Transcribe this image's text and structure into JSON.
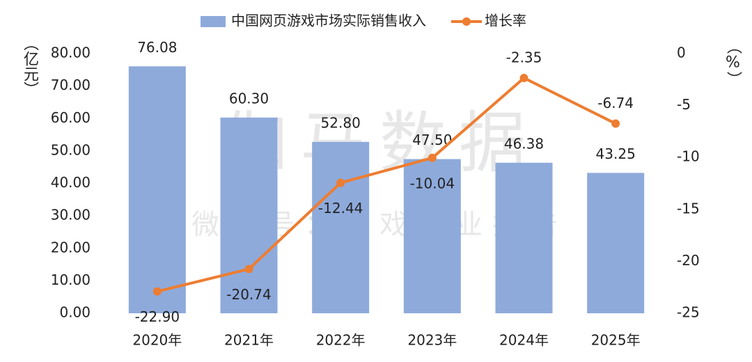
{
  "chart_data": {
    "type": "bar-line",
    "categories": [
      "2020年",
      "2021年",
      "2022年",
      "2023年",
      "2024年",
      "2025年"
    ],
    "series": [
      {
        "name": "中国网页游戏市场实际销售收入",
        "type": "bar",
        "color": "#8eaadb",
        "values": [
          76.08,
          60.3,
          52.8,
          47.5,
          46.38,
          43.25
        ],
        "value_labels": [
          "76.08",
          "60.30",
          "52.80",
          "47.50",
          "46.38",
          "43.25"
        ]
      },
      {
        "name": "增长率",
        "type": "line",
        "axis": "y2",
        "color": "#ed7d31",
        "values": [
          -22.9,
          -20.74,
          -12.44,
          -10.04,
          -2.35,
          -6.74
        ],
        "value_labels": [
          "-22.90",
          "-20.74",
          "-12.44",
          "-10.04",
          "-2.35",
          "-6.74"
        ]
      }
    ],
    "ylabel": "（亿元）",
    "y2label": "（%）",
    "ylim": [
      0,
      80
    ],
    "yticks": [
      {
        "value": 0,
        "label": "0.00"
      },
      {
        "value": 10,
        "label": "10.00"
      },
      {
        "value": 20,
        "label": "20.00"
      },
      {
        "value": 30,
        "label": "30.00"
      },
      {
        "value": 40,
        "label": "40.00"
      },
      {
        "value": 50,
        "label": "50.00"
      },
      {
        "value": 60,
        "label": "60.00"
      },
      {
        "value": 70,
        "label": "70.00"
      },
      {
        "value": 80,
        "label": "80.00"
      }
    ],
    "y2lim": [
      -25,
      0
    ],
    "y2ticks": [
      -25,
      -20,
      -15,
      -10,
      -5,
      0
    ],
    "legend": "top",
    "watermark": "伽马数据",
    "watermark_subtitle": "微信号：游戏产业报告"
  }
}
